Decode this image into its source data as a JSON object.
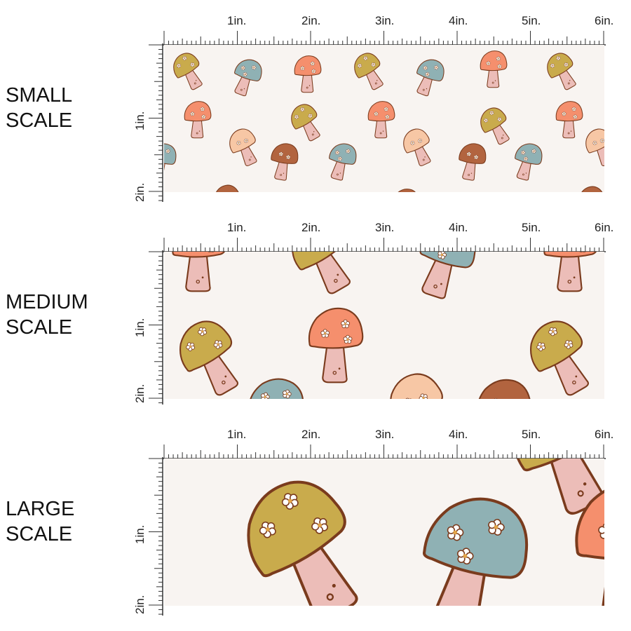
{
  "rows": [
    {
      "label_line1": "SMALL",
      "label_line2": "SCALE"
    },
    {
      "label_line1": "MEDIUM",
      "label_line2": "SCALE"
    },
    {
      "label_line1": "LARGE",
      "label_line2": "SCALE"
    }
  ],
  "ruler": {
    "top_marks": [
      "1in.",
      "2in.",
      "3in.",
      "4in.",
      "5in.",
      "6in."
    ],
    "side_marks": [
      "1in.",
      "2in."
    ]
  },
  "colors": {
    "background": "#f8f4f1",
    "mustard": "#c9ab4c",
    "blue": "#8fb1b4",
    "coral": "#f58f6d",
    "peach": "#f7c7a5",
    "rust": "#b2643f",
    "stem": "#ecbdb8",
    "outline": "#7a3b1d"
  }
}
